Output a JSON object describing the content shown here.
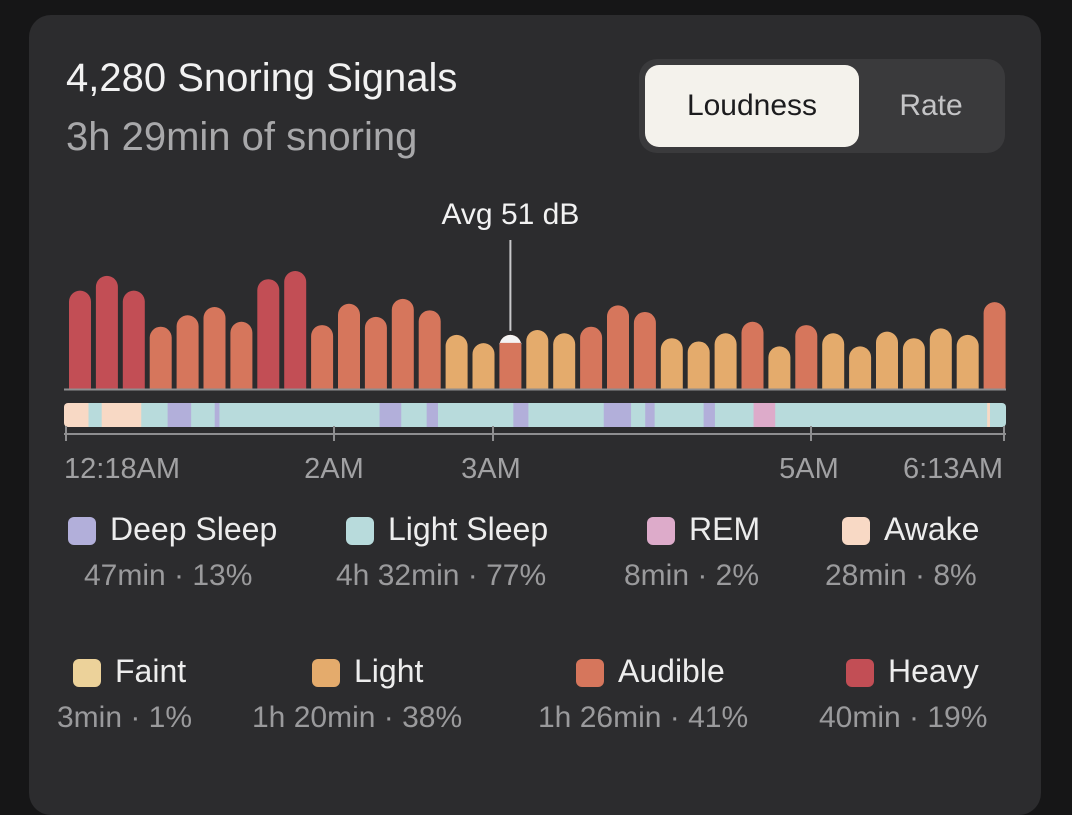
{
  "header": {
    "title": "4,280 Snoring Signals",
    "subtitle": "3h 29min of snoring"
  },
  "toggle": {
    "options": [
      "Loudness",
      "Rate"
    ],
    "selected": "Loudness"
  },
  "chart_data": {
    "type": "bar",
    "annotation": "Avg 51 dB",
    "average_db": 51,
    "average_bar_index": 16,
    "x_tick_labels": [
      "12:18AM",
      "2AM",
      "3AM",
      "5AM",
      "6:13AM"
    ],
    "bars": [
      {
        "value": 60,
        "level": "Heavy"
      },
      {
        "value": 69,
        "level": "Heavy"
      },
      {
        "value": 60,
        "level": "Heavy"
      },
      {
        "value": 38,
        "level": "Audible"
      },
      {
        "value": 45,
        "level": "Audible"
      },
      {
        "value": 50,
        "level": "Audible"
      },
      {
        "value": 41,
        "level": "Audible"
      },
      {
        "value": 67,
        "level": "Heavy"
      },
      {
        "value": 72,
        "level": "Heavy"
      },
      {
        "value": 39,
        "level": "Audible"
      },
      {
        "value": 52,
        "level": "Audible"
      },
      {
        "value": 44,
        "level": "Audible"
      },
      {
        "value": 55,
        "level": "Audible"
      },
      {
        "value": 48,
        "level": "Audible"
      },
      {
        "value": 33,
        "level": "Light"
      },
      {
        "value": 28,
        "level": "Light"
      },
      {
        "value": 33,
        "level": "Audible"
      },
      {
        "value": 36,
        "level": "Light"
      },
      {
        "value": 34,
        "level": "Light"
      },
      {
        "value": 38,
        "level": "Audible"
      },
      {
        "value": 51,
        "level": "Audible"
      },
      {
        "value": 47,
        "level": "Audible"
      },
      {
        "value": 31,
        "level": "Light"
      },
      {
        "value": 29,
        "level": "Light"
      },
      {
        "value": 34,
        "level": "Light"
      },
      {
        "value": 41,
        "level": "Audible"
      },
      {
        "value": 26,
        "level": "Light"
      },
      {
        "value": 39,
        "level": "Audible"
      },
      {
        "value": 34,
        "level": "Light"
      },
      {
        "value": 26,
        "level": "Light"
      },
      {
        "value": 35,
        "level": "Light"
      },
      {
        "value": 31,
        "level": "Light"
      },
      {
        "value": 37,
        "level": "Light"
      },
      {
        "value": 33,
        "level": "Light"
      },
      {
        "value": 53,
        "level": "Audible"
      }
    ],
    "stage_timeline_fractions": [
      {
        "stage": "Awake",
        "start": 0.0,
        "end": 0.026
      },
      {
        "stage": "Light Sleep",
        "start": 0.026,
        "end": 0.04
      },
      {
        "stage": "Awake",
        "start": 0.04,
        "end": 0.082
      },
      {
        "stage": "Light Sleep",
        "start": 0.082,
        "end": 0.11
      },
      {
        "stage": "Deep Sleep",
        "start": 0.11,
        "end": 0.135
      },
      {
        "stage": "Light Sleep",
        "start": 0.135,
        "end": 0.16
      },
      {
        "stage": "Deep Sleep",
        "start": 0.16,
        "end": 0.165
      },
      {
        "stage": "Light Sleep",
        "start": 0.165,
        "end": 0.335
      },
      {
        "stage": "Deep Sleep",
        "start": 0.335,
        "end": 0.358
      },
      {
        "stage": "Light Sleep",
        "start": 0.358,
        "end": 0.385
      },
      {
        "stage": "Deep Sleep",
        "start": 0.385,
        "end": 0.397
      },
      {
        "stage": "Light Sleep",
        "start": 0.397,
        "end": 0.477
      },
      {
        "stage": "Deep Sleep",
        "start": 0.477,
        "end": 0.493
      },
      {
        "stage": "Light Sleep",
        "start": 0.493,
        "end": 0.573
      },
      {
        "stage": "Deep Sleep",
        "start": 0.573,
        "end": 0.602
      },
      {
        "stage": "Light Sleep",
        "start": 0.602,
        "end": 0.617
      },
      {
        "stage": "Deep Sleep",
        "start": 0.617,
        "end": 0.627
      },
      {
        "stage": "Light Sleep",
        "start": 0.627,
        "end": 0.679
      },
      {
        "stage": "Deep Sleep",
        "start": 0.679,
        "end": 0.691
      },
      {
        "stage": "Light Sleep",
        "start": 0.691,
        "end": 0.732
      },
      {
        "stage": "REM",
        "start": 0.732,
        "end": 0.755
      },
      {
        "stage": "Light Sleep",
        "start": 0.755,
        "end": 0.98
      },
      {
        "stage": "Awake",
        "start": 0.98,
        "end": 0.983
      },
      {
        "stage": "Light Sleep",
        "start": 0.983,
        "end": 1.0
      }
    ]
  },
  "sleep_stages": [
    {
      "name": "Deep Sleep",
      "value": "47min · 13%",
      "color": "#b2afda"
    },
    {
      "name": "Light Sleep",
      "value": "4h 32min · 77%",
      "color": "#b8dbdc"
    },
    {
      "name": "REM",
      "value": "8min · 2%",
      "color": "#ddabca"
    },
    {
      "name": "Awake",
      "value": "28min · 8%",
      "color": "#f8d9c5"
    }
  ],
  "snore_levels": [
    {
      "name": "Faint",
      "value": "3min · 1%",
      "color": "#ecd29a"
    },
    {
      "name": "Light",
      "value": "1h 20min · 38%",
      "color": "#e4ab6c"
    },
    {
      "name": "Audible",
      "value": "1h 26min · 41%",
      "color": "#d6765c"
    },
    {
      "name": "Heavy",
      "value": "40min · 19%",
      "color": "#c24e55"
    }
  ],
  "colors": {
    "card": "#2c2c2e",
    "axis": "#9a9a9c",
    "marker": "#f4f4f4"
  }
}
